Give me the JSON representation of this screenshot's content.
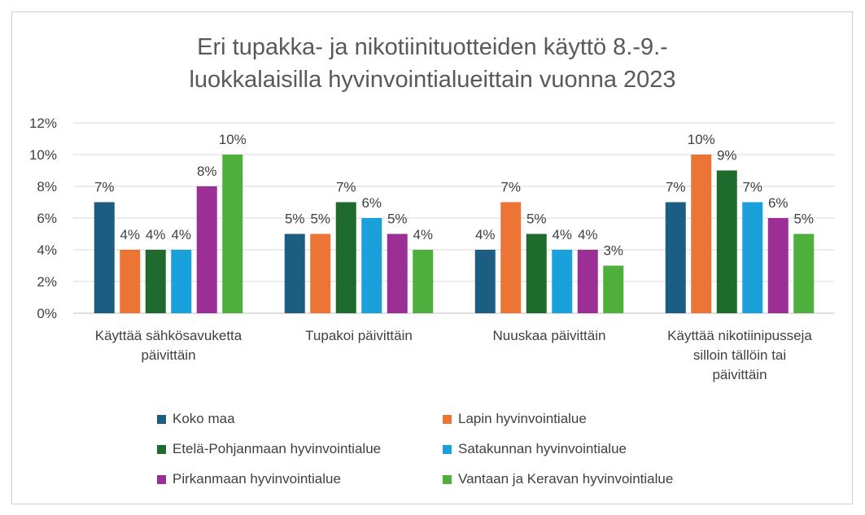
{
  "chart_data": {
    "type": "bar",
    "title_lines": [
      "Eri tupakka-  ja nikotiinituotteiden käyttö 8.-9.-",
      "luokkalaisilla hyvinvointialueittain vuonna 2023"
    ],
    "categories": [
      [
        "Käyttää sähkösavuketta",
        "päivittäin"
      ],
      [
        "Tupakoi päivittäin"
      ],
      [
        "Nuuskaa päivittäin"
      ],
      [
        "Käyttää nikotiinipusseja",
        "silloin tällöin tai",
        "päivittäin"
      ]
    ],
    "series": [
      {
        "name": "Koko maa",
        "color": "#1b5e82",
        "values": [
          7,
          5,
          4,
          7
        ]
      },
      {
        "name": "Lapin hyvinvointialue",
        "color": "#ec7434",
        "values": [
          4,
          5,
          7,
          10
        ]
      },
      {
        "name": "Etelä-Pohjanmaan hyvinvointialue",
        "color": "#1f6b2d",
        "values": [
          4,
          7,
          5,
          9
        ]
      },
      {
        "name": "Satakunnan hyvinvointialue",
        "color": "#1aa1dc",
        "values": [
          4,
          6,
          4,
          7
        ]
      },
      {
        "name": "Pirkanmaan hyvinvointialue",
        "color": "#9b2f96",
        "values": [
          8,
          5,
          4,
          6
        ]
      },
      {
        "name": "Vantaan ja Keravan hyvinvointialue",
        "color": "#4eaf3c",
        "values": [
          10,
          4,
          3,
          5
        ]
      }
    ],
    "ylim": [
      0,
      12
    ],
    "yticks": [
      0,
      2,
      4,
      6,
      8,
      10,
      12
    ],
    "value_suffix": "%",
    "grid": true,
    "legend_position": "bottom"
  }
}
